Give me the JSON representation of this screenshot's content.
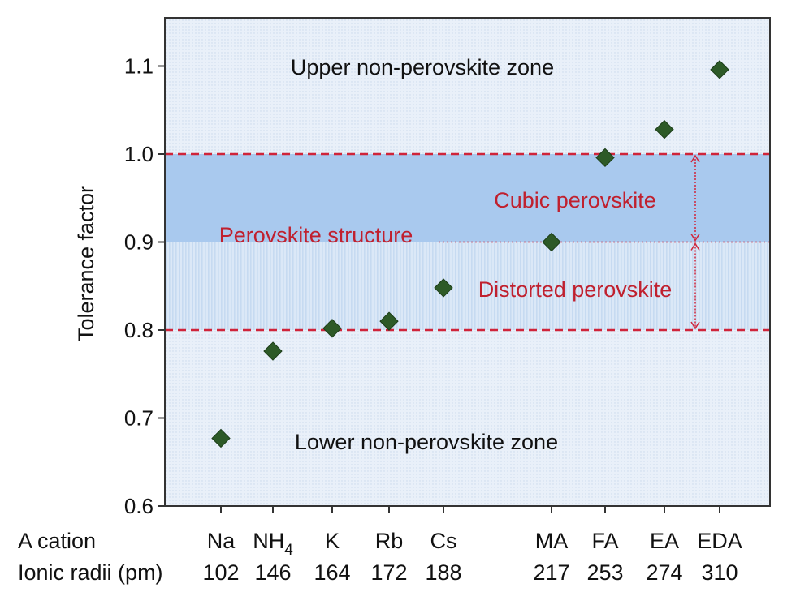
{
  "chart_data": {
    "type": "scatter",
    "ylabel": "Tolerance factor",
    "ylim": [
      0.6,
      1.15
    ],
    "yticks": [
      "0.6",
      "0.7",
      "0.8",
      "0.9",
      "1.0",
      "1.1"
    ],
    "grid": false,
    "row_headers": [
      "A cation",
      "Ionic radii (pm)"
    ],
    "categories": [
      "Na",
      "NH4",
      "K",
      "Rb",
      "Cs",
      "MA",
      "FA",
      "EA",
      "EDA"
    ],
    "ionic_radii": [
      "102",
      "146",
      "164",
      "172",
      "188",
      "217",
      "253",
      "274",
      "310"
    ],
    "values": [
      0.677,
      0.776,
      0.802,
      0.81,
      0.848,
      0.9,
      0.996,
      1.028,
      1.096
    ],
    "regions": {
      "cubic": [
        0.9,
        1.0
      ],
      "distorted": [
        0.8,
        0.9
      ],
      "reference_lines": [
        0.8,
        0.9,
        1.0
      ]
    },
    "annotations": {
      "upper": "Upper non-perovskite zone",
      "lower": "Lower non-perovskite zone",
      "perovskite": "Perovskite structure",
      "cubic": "Cubic perovskite",
      "distorted": "Distorted perovskite"
    },
    "colors": {
      "marker": "#2d5a27",
      "reference_line": "#d0243a",
      "annotation_red": "#c0202e",
      "cubic_band": "#a9c9ee",
      "distorted_band": "#d7e7f7",
      "background": "#eaf1f9"
    }
  }
}
